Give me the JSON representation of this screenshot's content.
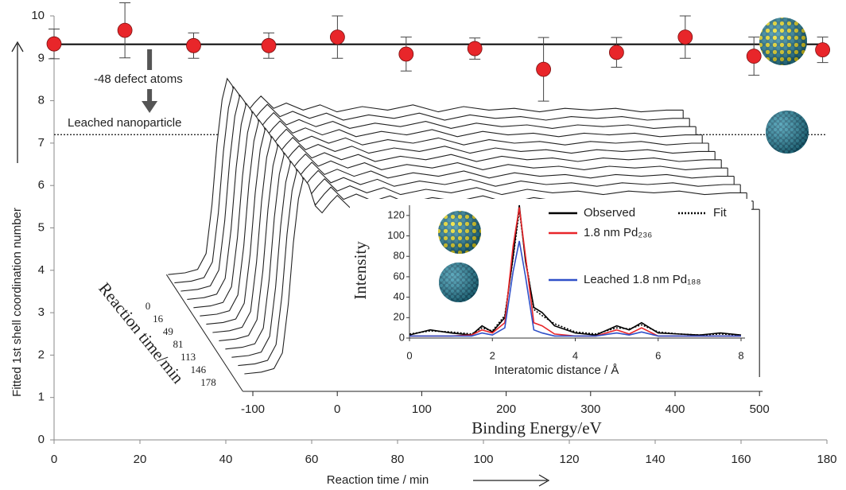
{
  "chart_data": [
    {
      "type": "scatter",
      "x_label": "Reaction time / min",
      "y_label": "Fitted 1st shell coordination number",
      "x": [
        0,
        16.5,
        32.5,
        50,
        66,
        82,
        98,
        114,
        131,
        147,
        163,
        179
      ],
      "values": [
        9.34,
        9.66,
        9.3,
        9.3,
        9.5,
        9.1,
        9.23,
        8.74,
        9.14,
        9.5,
        9.05,
        9.2
      ],
      "errors": [
        0.35,
        0.65,
        0.3,
        0.3,
        0.5,
        0.4,
        0.25,
        0.75,
        0.35,
        0.5,
        0.45,
        0.3
      ],
      "color": "#e8262a",
      "xlim": [
        0,
        180
      ],
      "xticks": [
        0,
        20,
        40,
        60,
        80,
        100,
        120,
        140,
        160,
        180
      ],
      "ylim": [
        0,
        10
      ],
      "yticks": [
        0,
        1,
        2,
        3,
        4,
        5,
        6,
        7,
        8,
        9,
        10
      ],
      "hlines": [
        {
          "value": 9.33,
          "style": "solid"
        },
        {
          "value": 7.2,
          "style": "dotted",
          "label": "Leached nanoparticle"
        }
      ],
      "annotation": "-48 defect atoms"
    },
    {
      "type": "waterfall",
      "x_label": "Binding Energy/eV",
      "depth_label": "Reaction time/min",
      "depth_categories": [
        0,
        null,
        16,
        null,
        49,
        null,
        81,
        null,
        113,
        null,
        146,
        null,
        178
      ],
      "x": [
        -110,
        -90,
        -75,
        -65,
        -58,
        -52,
        -46,
        -40,
        -34,
        -26,
        -18,
        -8,
        0,
        15,
        30,
        50,
        70,
        90,
        120,
        150,
        180,
        210,
        240,
        270,
        300,
        330,
        360,
        390,
        420,
        450,
        480,
        500
      ],
      "values": [
        0,
        0.01,
        0.03,
        0.12,
        0.4,
        0.75,
        1.0,
        1.12,
        1.08,
        0.96,
        0.92,
        0.98,
        1.02,
        0.95,
        0.98,
        0.94,
        0.97,
        0.93,
        0.96,
        0.94,
        0.97,
        0.93,
        0.96,
        0.94,
        0.95,
        0.93,
        0.95,
        0.94,
        0.95,
        0.93,
        0.94,
        0.94
      ],
      "xlim": [
        -110,
        500
      ],
      "xticks": [
        -100,
        0,
        100,
        200,
        300,
        400,
        500
      ]
    },
    {
      "type": "line",
      "x_label": "Interatomic distance / Å",
      "y_label": "Intensity",
      "x": [
        0,
        0.5,
        1,
        1.5,
        1.75,
        2,
        2.3,
        2.5,
        2.65,
        2.8,
        3,
        3.2,
        3.5,
        4,
        4.5,
        5,
        5.3,
        5.6,
        6,
        6.5,
        7,
        7.5,
        8
      ],
      "series": [
        {
          "name": "Observed",
          "color": "#000000",
          "style": "solid",
          "values": [
            3,
            8,
            5,
            3,
            12,
            6,
            20,
            80,
            130,
            75,
            30,
            25,
            12,
            5,
            3,
            12,
            8,
            15,
            5,
            4,
            3,
            5,
            3
          ]
        },
        {
          "name": "Fit",
          "color": "#000000",
          "style": "dotted",
          "values": [
            4,
            7,
            6,
            4,
            10,
            7,
            22,
            78,
            125,
            78,
            28,
            22,
            14,
            6,
            4,
            10,
            9,
            13,
            6,
            4,
            3,
            4,
            3
          ]
        },
        {
          "name": "1.8 nm Pd₂₃₆",
          "color": "#e8262a",
          "style": "solid",
          "values": [
            2,
            2,
            2,
            3,
            8,
            5,
            15,
            90,
            128,
            80,
            15,
            12,
            4,
            2,
            2,
            8,
            4,
            10,
            2,
            2,
            2,
            2,
            2
          ]
        },
        {
          "name": "Leached 1.8 nm Pd₁₈₈",
          "color": "#3050c8",
          "style": "solid",
          "values": [
            2,
            2,
            2,
            2,
            5,
            3,
            10,
            65,
            95,
            60,
            8,
            5,
            2,
            2,
            2,
            5,
            3,
            6,
            2,
            2,
            2,
            2,
            2
          ]
        }
      ],
      "xlim": [
        0,
        8
      ],
      "xticks": [
        0,
        2,
        4,
        6,
        8
      ],
      "ylim": [
        0,
        130
      ],
      "yticks": [
        0,
        20,
        40,
        60,
        80,
        100,
        120
      ]
    }
  ]
}
